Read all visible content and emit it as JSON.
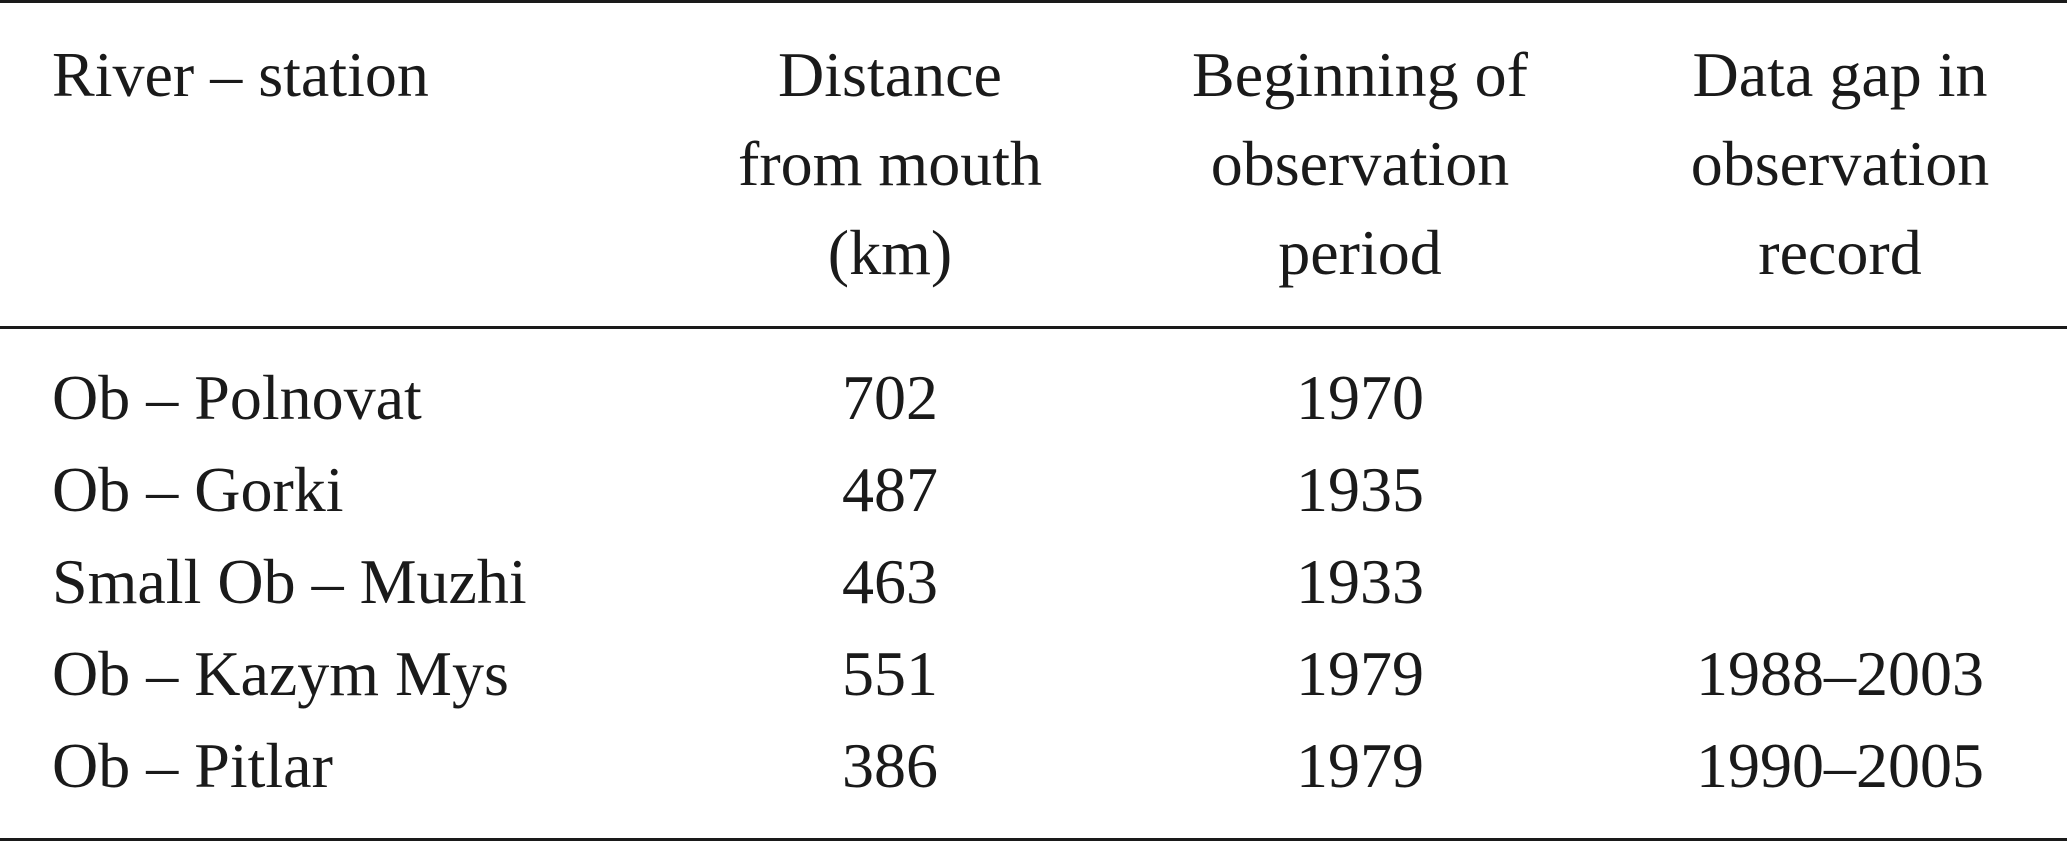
{
  "table": {
    "headers": [
      [
        "River – station"
      ],
      [
        "Distance",
        "from mouth",
        "(km)"
      ],
      [
        "Beginning of",
        "observation",
        "period"
      ],
      [
        "Data gap in",
        "observation",
        "record"
      ]
    ],
    "rows": [
      {
        "station": "Ob – Polnovat",
        "distance": "702",
        "begin": "1970",
        "gap": ""
      },
      {
        "station": "Ob – Gorki",
        "distance": "487",
        "begin": "1935",
        "gap": ""
      },
      {
        "station": "Small Ob – Muzhi",
        "distance": "463",
        "begin": "1933",
        "gap": ""
      },
      {
        "station": "Ob – Kazym Mys",
        "distance": "551",
        "begin": "1979",
        "gap": "1988–2003"
      },
      {
        "station": "Ob – Pitlar",
        "distance": "386",
        "begin": "1979",
        "gap": "1990–2005"
      }
    ]
  }
}
